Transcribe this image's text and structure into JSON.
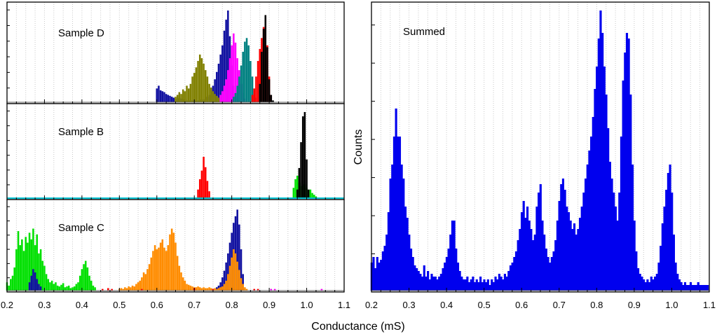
{
  "figure": {
    "xlabel": "Conductance (mS)",
    "right_ylabel": "Counts"
  },
  "chart_data": [
    {
      "type": "bar",
      "panel": "left-top",
      "annotation": "Sample D",
      "xlim": [
        0.2,
        1.1
      ],
      "x_ticks": [
        "0.2",
        "0.3",
        "0.4",
        "0.5",
        "0.6",
        "0.7",
        "0.8",
        "0.9",
        "1.0",
        "1.1"
      ],
      "grid": "vertical dotted",
      "bin_width": 0.005,
      "series": [
        {
          "color": "#1010a0",
          "x": [
            0.6,
            0.605,
            0.61,
            0.615,
            0.62,
            0.625,
            0.63,
            0.635,
            0.64,
            0.645,
            0.65,
            0.655,
            0.66,
            0.665,
            0.67,
            0.675,
            0.68,
            0.685,
            0.69,
            0.695,
            0.7,
            0.705,
            0.71,
            0.715,
            0.72,
            0.725,
            0.73,
            0.735,
            0.74,
            0.745,
            0.75,
            0.755,
            0.76,
            0.765,
            0.77,
            0.775,
            0.78,
            0.785,
            0.79,
            0.795,
            0.8,
            0.805,
            0.81,
            0.815,
            0.82
          ],
          "values": [
            0.15,
            0.18,
            0.13,
            0.12,
            0.11,
            0.09,
            0.08,
            0.07,
            0.06,
            0.05,
            0.04,
            0.04,
            0.05,
            0.04,
            0.03,
            0.03,
            0.02,
            0.02,
            0.02,
            0.02,
            0.02,
            0.02,
            0.02,
            0.02,
            0.03,
            0.03,
            0.04,
            0.06,
            0.08,
            0.12,
            0.18,
            0.25,
            0.33,
            0.42,
            0.52,
            0.62,
            0.78,
            0.9,
            1.0,
            0.72,
            0.4,
            0.18,
            0.06,
            0.03,
            0.02
          ]
        },
        {
          "color": "#808000",
          "x": [
            0.65,
            0.655,
            0.66,
            0.665,
            0.67,
            0.675,
            0.68,
            0.685,
            0.69,
            0.695,
            0.7,
            0.705,
            0.71,
            0.715,
            0.72,
            0.725,
            0.73,
            0.735,
            0.74,
            0.745,
            0.75,
            0.755,
            0.76,
            0.765,
            0.77
          ],
          "values": [
            0.06,
            0.08,
            0.11,
            0.09,
            0.14,
            0.12,
            0.18,
            0.15,
            0.2,
            0.28,
            0.32,
            0.38,
            0.45,
            0.52,
            0.48,
            0.42,
            0.35,
            0.28,
            0.2,
            0.16,
            0.12,
            0.09,
            0.07,
            0.05,
            0.03
          ]
        },
        {
          "color": "#ff00ff",
          "x": [
            0.77,
            0.775,
            0.78,
            0.785,
            0.79,
            0.795,
            0.8,
            0.805,
            0.81,
            0.815,
            0.82,
            0.825,
            0.83,
            0.835
          ],
          "values": [
            0.08,
            0.12,
            0.18,
            0.25,
            0.35,
            0.48,
            0.62,
            0.75,
            0.65,
            0.48,
            0.35,
            0.2,
            0.1,
            0.04
          ]
        },
        {
          "color": "#008080",
          "x": [
            0.805,
            0.81,
            0.815,
            0.82,
            0.825,
            0.83,
            0.835,
            0.84,
            0.845,
            0.85,
            0.855,
            0.86,
            0.865
          ],
          "values": [
            0.06,
            0.1,
            0.18,
            0.28,
            0.4,
            0.55,
            0.66,
            0.7,
            0.62,
            0.45,
            0.28,
            0.12,
            0.05
          ]
        },
        {
          "color": "#ff0000",
          "x": [
            0.855,
            0.86,
            0.865,
            0.87,
            0.875,
            0.88,
            0.885,
            0.89,
            0.895,
            0.9,
            0.905
          ],
          "values": [
            0.08,
            0.15,
            0.28,
            0.45,
            0.58,
            0.7,
            0.82,
            0.92,
            0.62,
            0.28,
            0.08
          ]
        },
        {
          "color": "#000000",
          "x": [
            0.875,
            0.88,
            0.885,
            0.89,
            0.895,
            0.9,
            0.905,
            0.91
          ],
          "values": [
            0.2,
            0.55,
            0.8,
            0.95,
            0.6,
            0.25,
            0.08,
            0.02
          ]
        }
      ]
    },
    {
      "type": "bar",
      "panel": "left-middle",
      "annotation": "Sample B",
      "xlim": [
        0.2,
        1.1
      ],
      "x_ticks": [
        "0.2",
        "0.3",
        "0.4",
        "0.5",
        "0.6",
        "0.7",
        "0.8",
        "0.9",
        "1.0",
        "1.1"
      ],
      "grid": "vertical dotted",
      "bin_width": 0.005,
      "series": [
        {
          "color": "#ff0000",
          "x": [
            0.71,
            0.715,
            0.72,
            0.725,
            0.73,
            0.735,
            0.74
          ],
          "values": [
            0.1,
            0.22,
            0.32,
            0.48,
            0.36,
            0.2,
            0.08
          ]
        },
        {
          "color": "#00e000",
          "x": [
            0.965,
            0.97,
            0.975,
            0.98,
            0.985,
            0.99,
            0.995,
            1.0,
            1.005,
            1.01,
            1.015,
            1.02,
            1.025
          ],
          "values": [
            0.12,
            0.22,
            0.26,
            0.18,
            0.14,
            0.2,
            0.16,
            0.12,
            0.09,
            0.1,
            0.06,
            0.04,
            0.02
          ]
        },
        {
          "color": "#000000",
          "x": [
            0.975,
            0.98,
            0.985,
            0.99,
            0.995,
            1.0,
            1.005
          ],
          "values": [
            0.1,
            0.35,
            0.65,
            0.95,
            1.0,
            0.45,
            0.1
          ]
        }
      ]
    },
    {
      "type": "bar",
      "panel": "left-bottom",
      "annotation": "Sample C",
      "xlim": [
        0.2,
        1.1
      ],
      "x_ticks": [
        "0.2",
        "0.3",
        "0.4",
        "0.5",
        "0.6",
        "0.7",
        "0.8",
        "0.9",
        "1.0",
        "1.1"
      ],
      "grid": "vertical dotted",
      "bin_width": 0.005,
      "series": [
        {
          "color": "#00e000",
          "x": [
            0.2,
            0.205,
            0.21,
            0.215,
            0.22,
            0.225,
            0.23,
            0.235,
            0.24,
            0.245,
            0.25,
            0.255,
            0.26,
            0.265,
            0.27,
            0.275,
            0.28,
            0.285,
            0.29,
            0.295,
            0.3,
            0.305,
            0.31,
            0.315,
            0.32,
            0.325,
            0.33,
            0.335,
            0.34,
            0.345,
            0.35,
            0.355,
            0.36,
            0.365,
            0.37,
            0.375,
            0.38,
            0.385,
            0.39,
            0.395,
            0.4,
            0.405,
            0.41,
            0.415,
            0.42,
            0.425,
            0.43,
            0.435
          ],
          "values": [
            0.1,
            0.06,
            0.14,
            0.18,
            0.28,
            0.5,
            0.72,
            0.55,
            0.62,
            0.48,
            0.65,
            0.58,
            0.7,
            0.62,
            0.75,
            0.55,
            0.68,
            0.45,
            0.5,
            0.36,
            0.3,
            0.2,
            0.14,
            0.1,
            0.12,
            0.08,
            0.1,
            0.06,
            0.05,
            0.07,
            0.09,
            0.04,
            0.05,
            0.06,
            0.03,
            0.04,
            0.05,
            0.08,
            0.1,
            0.18,
            0.26,
            0.32,
            0.36,
            0.28,
            0.18,
            0.12,
            0.06,
            0.04
          ]
        },
        {
          "color": "#1010a0",
          "x": [
            0.26,
            0.265,
            0.27,
            0.275,
            0.28,
            0.285,
            0.29,
            0.76,
            0.765,
            0.77,
            0.775,
            0.78,
            0.785,
            0.79,
            0.795,
            0.8,
            0.805,
            0.81,
            0.815,
            0.82,
            0.825,
            0.83
          ],
          "values": [
            0.1,
            0.18,
            0.26,
            0.22,
            0.14,
            0.08,
            0.05,
            0.04,
            0.06,
            0.1,
            0.16,
            0.24,
            0.34,
            0.45,
            0.58,
            0.7,
            0.82,
            0.9,
            0.98,
            0.8,
            0.5,
            0.2
          ]
        },
        {
          "color": "#ff8c00",
          "x": [
            0.5,
            0.505,
            0.51,
            0.515,
            0.52,
            0.525,
            0.53,
            0.535,
            0.54,
            0.545,
            0.55,
            0.555,
            0.56,
            0.565,
            0.57,
            0.575,
            0.58,
            0.585,
            0.59,
            0.595,
            0.6,
            0.605,
            0.61,
            0.615,
            0.62,
            0.625,
            0.63,
            0.635,
            0.64,
            0.645,
            0.65,
            0.655,
            0.66,
            0.665,
            0.67,
            0.675,
            0.68,
            0.685,
            0.69,
            0.695,
            0.7,
            0.705,
            0.71,
            0.715,
            0.72,
            0.725,
            0.73,
            0.735,
            0.74,
            0.745,
            0.75,
            0.755,
            0.76,
            0.765,
            0.77,
            0.775,
            0.78,
            0.785,
            0.79,
            0.795,
            0.8,
            0.805,
            0.81,
            0.815,
            0.82,
            0.825,
            0.83,
            0.835,
            0.84
          ],
          "values": [
            0.02,
            0.03,
            0.02,
            0.04,
            0.03,
            0.05,
            0.04,
            0.06,
            0.05,
            0.08,
            0.1,
            0.12,
            0.16,
            0.22,
            0.2,
            0.26,
            0.32,
            0.4,
            0.48,
            0.55,
            0.5,
            0.52,
            0.58,
            0.62,
            0.52,
            0.48,
            0.55,
            0.68,
            0.75,
            0.7,
            0.58,
            0.42,
            0.3,
            0.22,
            0.16,
            0.12,
            0.08,
            0.07,
            0.06,
            0.05,
            0.04,
            0.04,
            0.05,
            0.04,
            0.03,
            0.04,
            0.03,
            0.03,
            0.04,
            0.03,
            0.02,
            0.03,
            0.02,
            0.03,
            0.04,
            0.05,
            0.08,
            0.12,
            0.2,
            0.3,
            0.4,
            0.5,
            0.45,
            0.35,
            0.25,
            0.15,
            0.08,
            0.04,
            0.02
          ]
        },
        {
          "color": "#ff0000",
          "x": [
            0.455,
            0.47,
            0.48,
            0.56,
            0.7,
            0.75,
            0.86,
            0.87
          ],
          "values": [
            0.02,
            0.03,
            0.02,
            0.02,
            0.03,
            0.02,
            0.02,
            0.02
          ]
        },
        {
          "color": "#ff00ff",
          "x": [
            0.905,
            0.915,
            1.04
          ],
          "values": [
            0.02,
            0.02,
            0.02
          ]
        }
      ]
    },
    {
      "type": "bar",
      "panel": "right",
      "annotation": "Summed",
      "color": "#0000ee",
      "xlim": [
        0.2,
        1.1
      ],
      "x_ticks": [
        "0.2",
        "0.3",
        "0.4",
        "0.5",
        "0.6",
        "0.7",
        "0.8",
        "0.9",
        "1.0",
        "1.1"
      ],
      "grid": "vertical dotted",
      "ylabel": "Counts",
      "bin_width": 0.005,
      "x": [
        0.2,
        0.205,
        0.21,
        0.215,
        0.22,
        0.225,
        0.23,
        0.235,
        0.24,
        0.245,
        0.25,
        0.255,
        0.26,
        0.265,
        0.27,
        0.275,
        0.28,
        0.285,
        0.29,
        0.295,
        0.3,
        0.305,
        0.31,
        0.315,
        0.32,
        0.325,
        0.33,
        0.335,
        0.34,
        0.345,
        0.35,
        0.355,
        0.36,
        0.365,
        0.37,
        0.375,
        0.38,
        0.385,
        0.39,
        0.395,
        0.4,
        0.405,
        0.41,
        0.415,
        0.42,
        0.425,
        0.43,
        0.435,
        0.44,
        0.445,
        0.45,
        0.455,
        0.46,
        0.465,
        0.47,
        0.475,
        0.48,
        0.485,
        0.49,
        0.495,
        0.5,
        0.505,
        0.51,
        0.515,
        0.52,
        0.525,
        0.53,
        0.535,
        0.54,
        0.545,
        0.55,
        0.555,
        0.56,
        0.565,
        0.57,
        0.575,
        0.58,
        0.585,
        0.59,
        0.595,
        0.6,
        0.605,
        0.61,
        0.615,
        0.62,
        0.625,
        0.63,
        0.635,
        0.64,
        0.645,
        0.65,
        0.655,
        0.66,
        0.665,
        0.67,
        0.675,
        0.68,
        0.685,
        0.69,
        0.695,
        0.7,
        0.705,
        0.71,
        0.715,
        0.72,
        0.725,
        0.73,
        0.735,
        0.74,
        0.745,
        0.75,
        0.755,
        0.76,
        0.765,
        0.77,
        0.775,
        0.78,
        0.785,
        0.79,
        0.795,
        0.8,
        0.805,
        0.81,
        0.815,
        0.82,
        0.825,
        0.83,
        0.835,
        0.84,
        0.845,
        0.85,
        0.855,
        0.86,
        0.865,
        0.87,
        0.875,
        0.88,
        0.885,
        0.89,
        0.895,
        0.9,
        0.905,
        0.91,
        0.915,
        0.92,
        0.925,
        0.93,
        0.935,
        0.94,
        0.945,
        0.95,
        0.955,
        0.96,
        0.965,
        0.97,
        0.975,
        0.98,
        0.985,
        0.99,
        0.995,
        1.0,
        1.005,
        1.01,
        1.015,
        1.02,
        1.025,
        1.03,
        1.035,
        1.04,
        1.045,
        1.05,
        1.055,
        1.06,
        1.065,
        1.07,
        1.075,
        1.08,
        1.085,
        1.09,
        1.095
      ],
      "values": [
        0.1,
        0.12,
        0.08,
        0.12,
        0.1,
        0.11,
        0.14,
        0.16,
        0.2,
        0.28,
        0.4,
        0.45,
        0.55,
        0.65,
        0.55,
        0.55,
        0.45,
        0.4,
        0.3,
        0.26,
        0.2,
        0.15,
        0.12,
        0.09,
        0.08,
        0.07,
        0.06,
        0.05,
        0.09,
        0.05,
        0.07,
        0.04,
        0.06,
        0.05,
        0.05,
        0.04,
        0.05,
        0.06,
        0.08,
        0.1,
        0.12,
        0.15,
        0.2,
        0.25,
        0.25,
        0.15,
        0.1,
        0.07,
        0.05,
        0.04,
        0.04,
        0.05,
        0.03,
        0.04,
        0.05,
        0.03,
        0.04,
        0.03,
        0.05,
        0.03,
        0.04,
        0.03,
        0.04,
        0.02,
        0.04,
        0.03,
        0.05,
        0.04,
        0.06,
        0.05,
        0.04,
        0.06,
        0.05,
        0.07,
        0.09,
        0.1,
        0.12,
        0.14,
        0.18,
        0.22,
        0.28,
        0.32,
        0.26,
        0.3,
        0.25,
        0.22,
        0.18,
        0.2,
        0.3,
        0.35,
        0.38,
        0.25,
        0.2,
        0.15,
        0.12,
        0.1,
        0.12,
        0.14,
        0.18,
        0.25,
        0.32,
        0.38,
        0.4,
        0.36,
        0.3,
        0.28,
        0.25,
        0.22,
        0.24,
        0.2,
        0.22,
        0.26,
        0.3,
        0.35,
        0.4,
        0.45,
        0.5,
        0.55,
        0.62,
        0.72,
        0.8,
        0.9,
        1.0,
        0.92,
        0.8,
        0.7,
        0.58,
        0.46,
        0.4,
        0.35,
        0.3,
        0.25,
        0.35,
        0.55,
        0.75,
        0.85,
        0.92,
        0.9,
        0.7,
        0.45,
        0.25,
        0.14,
        0.08,
        0.06,
        0.05,
        0.04,
        0.03,
        0.04,
        0.03,
        0.05,
        0.04,
        0.05,
        0.06,
        0.1,
        0.16,
        0.24,
        0.3,
        0.36,
        0.42,
        0.45,
        0.35,
        0.2,
        0.1,
        0.06,
        0.04,
        0.03,
        0.02,
        0.03,
        0.02,
        0.02,
        0.03,
        0.02,
        0.02,
        0.02,
        0.03,
        0.02,
        0.02,
        0.02,
        0.02,
        0.02
      ]
    }
  ]
}
